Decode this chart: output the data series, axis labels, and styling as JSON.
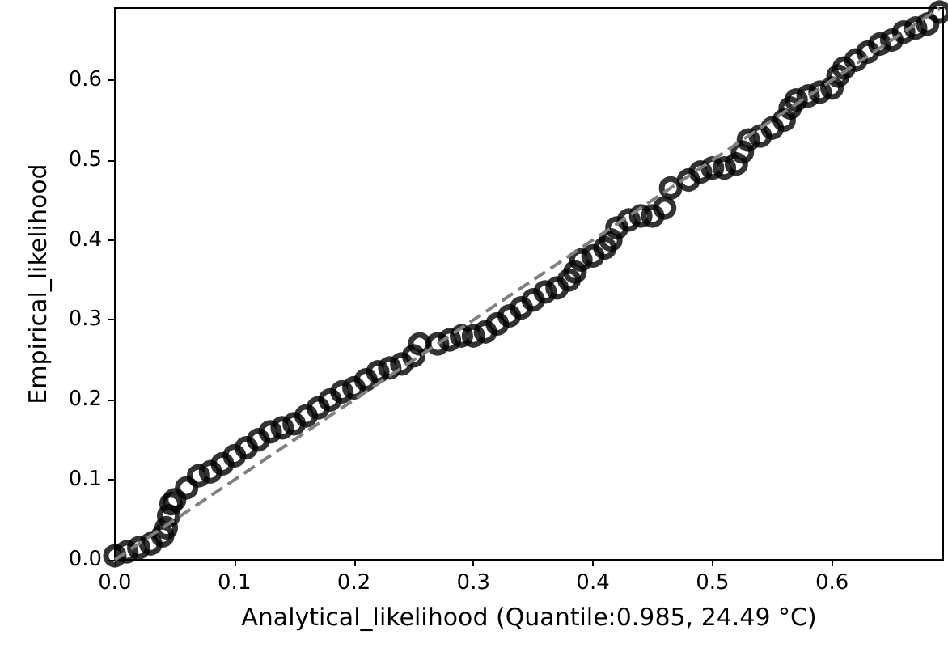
{
  "chart_data": {
    "type": "scatter",
    "xlabel": "Analytical_likelihood (Quantile:0.985, 24.49 °C)",
    "ylabel": "Empirical_likelihood",
    "xlim": [
      0,
      0.693
    ],
    "ylim": [
      0,
      0.69
    ],
    "xticks": [
      {
        "value": 0,
        "label": "0.0"
      },
      {
        "value": 0.1,
        "label": "0.1"
      },
      {
        "value": 0.2,
        "label": "0.2"
      },
      {
        "value": 0.3,
        "label": "0.3"
      },
      {
        "value": 0.4,
        "label": "0.4"
      },
      {
        "value": 0.5,
        "label": "0.5"
      },
      {
        "value": 0.6,
        "label": "0.6"
      }
    ],
    "yticks": [
      {
        "value": 0,
        "label": "0.0"
      },
      {
        "value": 0.1,
        "label": "0.1"
      },
      {
        "value": 0.2,
        "label": "0.2"
      },
      {
        "value": 0.3,
        "label": "0.3"
      },
      {
        "value": 0.4,
        "label": "0.4"
      },
      {
        "value": 0.5,
        "label": "0.5"
      },
      {
        "value": 0.6,
        "label": "0.6"
      }
    ],
    "grid": false,
    "marker": "circle",
    "series": [
      {
        "color": "#000000",
        "x": [
          0,
          0.01,
          0.02,
          0.03,
          0.04,
          0.043,
          0.045,
          0.047,
          0.05,
          0.06,
          0.07,
          0.08,
          0.09,
          0.1,
          0.11,
          0.12,
          0.13,
          0.14,
          0.15,
          0.16,
          0.17,
          0.18,
          0.19,
          0.2,
          0.21,
          0.22,
          0.23,
          0.24,
          0.25,
          0.255,
          0.27,
          0.28,
          0.29,
          0.3,
          0.31,
          0.32,
          0.33,
          0.34,
          0.35,
          0.36,
          0.37,
          0.38,
          0.385,
          0.39,
          0.4,
          0.41,
          0.415,
          0.42,
          0.43,
          0.44,
          0.45,
          0.46,
          0.465,
          0.48,
          0.49,
          0.5,
          0.51,
          0.52,
          0.525,
          0.53,
          0.54,
          0.55,
          0.56,
          0.565,
          0.57,
          0.58,
          0.59,
          0.6,
          0.605,
          0.61,
          0.62,
          0.63,
          0.64,
          0.65,
          0.66,
          0.67,
          0.68,
          0.69
        ],
        "values": [
          0.005,
          0.01,
          0.015,
          0.02,
          0.03,
          0.04,
          0.055,
          0.07,
          0.075,
          0.09,
          0.105,
          0.11,
          0.12,
          0.13,
          0.14,
          0.15,
          0.16,
          0.165,
          0.17,
          0.18,
          0.19,
          0.2,
          0.21,
          0.215,
          0.225,
          0.235,
          0.24,
          0.245,
          0.255,
          0.27,
          0.27,
          0.275,
          0.28,
          0.28,
          0.285,
          0.295,
          0.305,
          0.315,
          0.325,
          0.335,
          0.34,
          0.35,
          0.36,
          0.375,
          0.38,
          0.39,
          0.4,
          0.415,
          0.425,
          0.43,
          0.43,
          0.44,
          0.465,
          0.475,
          0.485,
          0.49,
          0.49,
          0.495,
          0.51,
          0.525,
          0.53,
          0.54,
          0.55,
          0.565,
          0.575,
          0.58,
          0.585,
          0.59,
          0.605,
          0.615,
          0.625,
          0.635,
          0.645,
          0.65,
          0.66,
          0.665,
          0.67,
          0.685
        ]
      },
      {
        "type": "line",
        "color": "#808080",
        "line_style": "dashed",
        "marker": "none",
        "x": [
          0,
          0.69
        ],
        "values": [
          0,
          0.69
        ]
      }
    ]
  }
}
